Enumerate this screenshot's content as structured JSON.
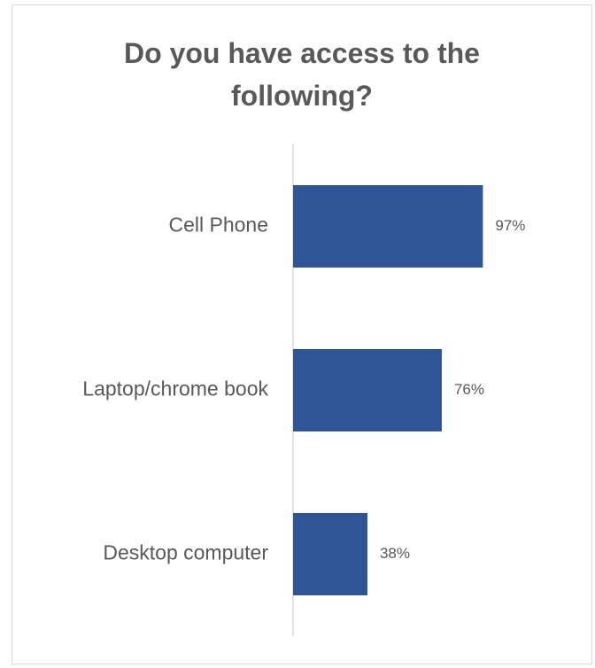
{
  "chart_data": {
    "type": "bar",
    "orientation": "horizontal",
    "title_lines": [
      "Do you have access to the",
      "following?"
    ],
    "categories": [
      "Cell Phone",
      "Laptop/chrome book",
      "Desktop computer"
    ],
    "values": [
      97,
      76,
      38
    ],
    "data_labels": [
      "97%",
      "76%",
      "38%"
    ],
    "xlim": [
      0,
      100
    ],
    "value_axis_visible": false,
    "grid": false,
    "legend": "none",
    "xlabel": "",
    "ylabel": "",
    "bar_color": "#2f5597",
    "text_color": "#595959",
    "axis_color": "#d9d9d9"
  }
}
